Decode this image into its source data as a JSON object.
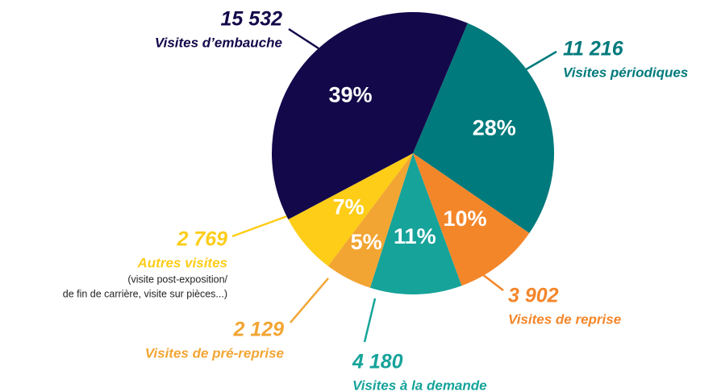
{
  "chart_data": {
    "type": "pie",
    "categories": [
      "Visites périodiques",
      "Visites de reprise",
      "Visites à la demande",
      "Visites de pré-reprise",
      "Autres visites",
      "Visites d’embauche"
    ],
    "values": [
      11216,
      3902,
      4180,
      2129,
      2769,
      15532
    ],
    "value_labels": [
      "11 216",
      "3 902",
      "4 180",
      "2 129",
      "2 769",
      "15 532"
    ],
    "percent_labels": [
      "28%",
      "10%",
      "11%",
      "5%",
      "7%",
      "39%"
    ],
    "colors": [
      "#007a7c",
      "#f4862a",
      "#16a39a",
      "#f2a533",
      "#fdcd17",
      "#13084a"
    ],
    "annotations": [
      "(visite post-exposition/",
      "de fin de carrière, visite sur pièces...)"
    ]
  }
}
